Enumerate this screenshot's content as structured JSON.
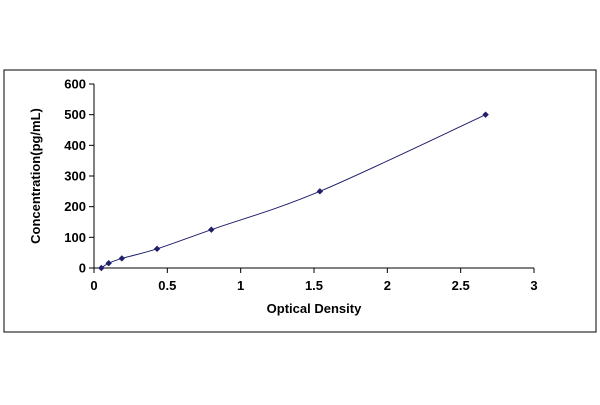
{
  "chart_data": {
    "type": "scatter",
    "title": "",
    "xlabel": "Optical Density",
    "ylabel": "Concentration(pg/mL)",
    "xlim": [
      0,
      3
    ],
    "ylim": [
      0,
      600
    ],
    "x_ticks": [
      "0",
      "0.5",
      "1",
      "1.5",
      "2",
      "2.5",
      "3"
    ],
    "y_ticks": [
      "0",
      "100",
      "200",
      "300",
      "400",
      "500",
      "600"
    ],
    "grid": false,
    "legend": "none",
    "series": [
      {
        "x": [
          0.05,
          0.1,
          0.19,
          0.43,
          0.8,
          1.54,
          2.67
        ],
        "y": [
          0,
          15.6,
          31.2,
          62.5,
          125,
          250,
          500
        ],
        "marker": "diamond",
        "color": "#1f1f6b",
        "fit_line": true
      }
    ]
  }
}
